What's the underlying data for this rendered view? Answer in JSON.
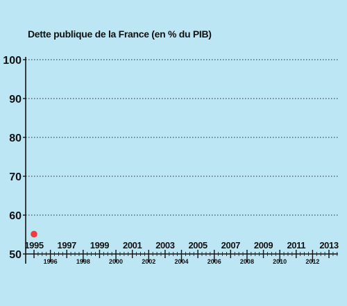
{
  "colors": {
    "background": "#bde6f4",
    "axis": "#111111",
    "grid": "#222222",
    "point": "#f23c3c"
  },
  "chart_data": {
    "type": "scatter",
    "title": "Dette publique de la France (en % du PIB)",
    "xlabel": "",
    "ylabel": "",
    "xlim": [
      1995,
      2013
    ],
    "ylim": [
      50,
      100
    ],
    "y_ticks": [
      "50",
      "60",
      "70",
      "80",
      "90",
      "100"
    ],
    "x_ticks_top": [
      "1995",
      "1997",
      "1999",
      "2001",
      "2003",
      "2005",
      "2007",
      "2009",
      "2011",
      "2013"
    ],
    "x_ticks_bottom": [
      "1996",
      "1998",
      "2000",
      "2002",
      "2004",
      "2006",
      "2008",
      "2010",
      "2012"
    ],
    "grid": true,
    "legend": "none",
    "series": [
      {
        "points": [
          {
            "x": 1995,
            "y": 55.1
          }
        ]
      }
    ]
  }
}
